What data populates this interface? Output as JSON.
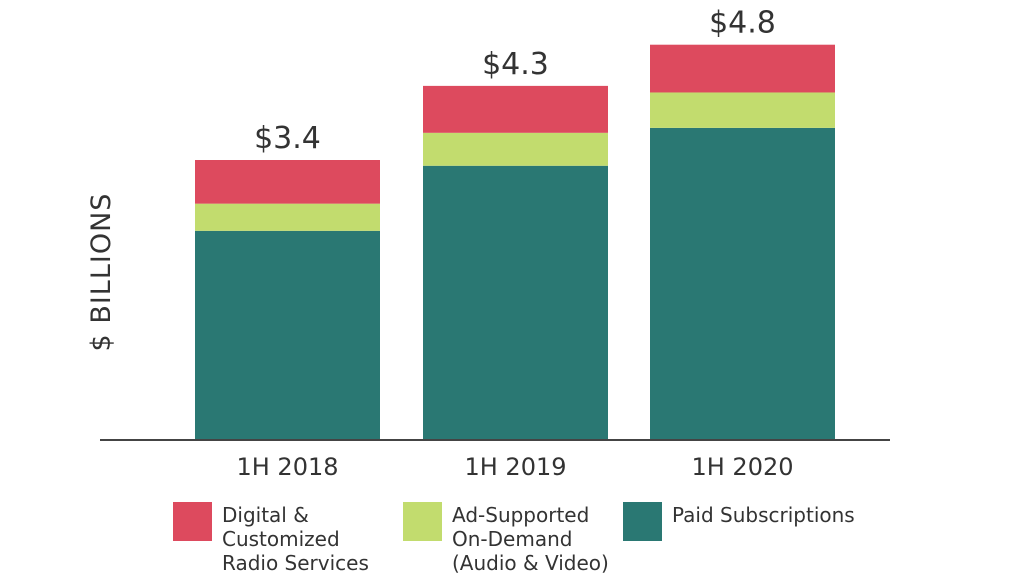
{
  "chart_data": {
    "type": "bar",
    "stacked": true,
    "title": "",
    "xlabel": "",
    "ylabel": "$ BILLIONS",
    "ylim": [
      0,
      5.3
    ],
    "grid": false,
    "categories": [
      "1H 2018",
      "1H 2019",
      "1H 2020"
    ],
    "totals": [
      "$3.4",
      "$4.3",
      "$4.8"
    ],
    "total_values": [
      3.4,
      4.3,
      4.8
    ],
    "series": [
      {
        "name": "Paid Subscriptions",
        "color": "#2a7873",
        "values": [
          2.54,
          3.33,
          3.79
        ]
      },
      {
        "name": "Ad-Supported On-Demand (Audio & Video)",
        "color": "#c2dc6e",
        "values": [
          0.33,
          0.4,
          0.43
        ]
      },
      {
        "name": "Digital & Customized Radio Services",
        "color": "#dd4a5e",
        "values": [
          0.53,
          0.57,
          0.58
        ]
      }
    ],
    "legend": {
      "placement": "bottom",
      "items": [
        {
          "lines": [
            "Digital &",
            "Customized",
            "Radio Services"
          ],
          "color": "#dd4a5e"
        },
        {
          "lines": [
            "Ad-Supported",
            "On-Demand",
            "(Audio & Video)"
          ],
          "color": "#c2dc6e"
        },
        {
          "lines": [
            "Paid Subscriptions"
          ],
          "color": "#2a7873"
        }
      ]
    }
  }
}
